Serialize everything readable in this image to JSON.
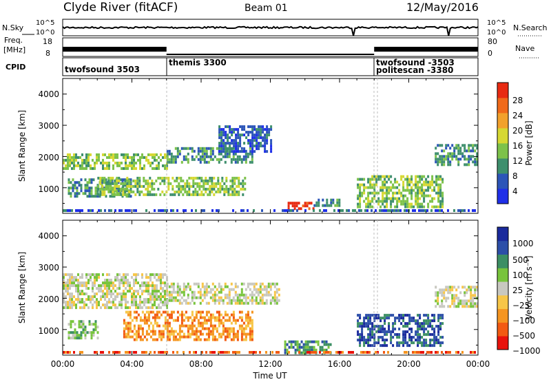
{
  "header": {
    "station": "Clyde River (fitACF)",
    "beam": "Beam 01",
    "date": "12/May/2016"
  },
  "top_panels": {
    "nsky_label": "N.Sky",
    "nsky_ticks": [
      "10^5",
      "10^0"
    ],
    "nsearch_label": "N.Search",
    "nsearch_ticks": [
      "10^5",
      "10^0"
    ],
    "freq_label_1": "Freq.",
    "freq_label_2": "[MHz]",
    "freq_ticks": [
      "18",
      "8"
    ],
    "nave_label": "Nave",
    "nave_ticks": [
      "80",
      "0"
    ],
    "cpid_label": "CPID"
  },
  "cpid_segments": [
    {
      "label": "twofsound 3503",
      "start_hour": 0
    },
    {
      "label": "themis 3300",
      "start_hour": 6
    },
    {
      "label": "twofsound -3503",
      "start_hour": 18
    },
    {
      "label": "politescan -3380",
      "start_hour": 18
    }
  ],
  "colors": {
    "power": [
      "#1f2fe8",
      "#2c55b8",
      "#3e8f6d",
      "#7dc24a",
      "#d6d832",
      "#f2a12c",
      "#f06a1a",
      "#e82a12"
    ],
    "velocity": [
      "#e8120c",
      "#f25a12",
      "#f59520",
      "#f7c648",
      "#c8c8c0",
      "#78c43c",
      "#3c8f64",
      "#2c4fa8",
      "#1a2a9c"
    ]
  },
  "chart_data": [
    {
      "type": "heatmap",
      "name": "power",
      "ylabel": "Slant Range [km]",
      "xlabel": "",
      "xlim": [
        "00:00",
        "00:00"
      ],
      "ylim": [
        180,
        4500
      ],
      "y_ticks": [
        "1000",
        "2000",
        "3000",
        "4000"
      ],
      "colorbar_label": "Power [dB]",
      "colorbar_ticks": [
        "4",
        "8",
        "12",
        "16",
        "20",
        "24",
        "28"
      ],
      "regions": [
        {
          "t0": 0.0,
          "t1": 6.0,
          "r0": 1650,
          "r1": 2100,
          "level": 3
        },
        {
          "t0": 0.3,
          "t1": 4.0,
          "r0": 700,
          "r1": 1300,
          "level": 2
        },
        {
          "t0": 2.0,
          "t1": 10.5,
          "r0": 750,
          "r1": 1350,
          "level": 3
        },
        {
          "t0": 6.0,
          "t1": 11.0,
          "r0": 1800,
          "r1": 2300,
          "level": 2
        },
        {
          "t0": 9.0,
          "t1": 12.0,
          "r0": 2200,
          "r1": 3000,
          "level": 1
        },
        {
          "t0": 13.0,
          "t1": 14.5,
          "r0": 350,
          "r1": 550,
          "level": 7
        },
        {
          "t0": 14.5,
          "t1": 16.0,
          "r0": 400,
          "r1": 650,
          "level": 2
        },
        {
          "t0": 17.0,
          "t1": 22.0,
          "r0": 400,
          "r1": 1400,
          "level": 3
        },
        {
          "t0": 21.5,
          "t1": 24.0,
          "r0": 1700,
          "r1": 2400,
          "level": 2
        }
      ]
    },
    {
      "type": "heatmap",
      "name": "velocity",
      "ylabel": "Slant Range [km]",
      "xlabel": "Time UT",
      "x_ticks": [
        "00:00",
        "04:00",
        "08:00",
        "12:00",
        "16:00",
        "20:00",
        "00:00"
      ],
      "ylim": [
        180,
        4500
      ],
      "y_ticks": [
        "1000",
        "2000",
        "3000",
        "4000"
      ],
      "colorbar_label": "Velocity [m s⁻¹]",
      "colorbar_ticks": [
        "1000",
        "500",
        "100",
        "25",
        "−25",
        "−100",
        "−500",
        "−1000"
      ],
      "regions": [
        {
          "t0": 0.0,
          "t1": 6.0,
          "r0": 1700,
          "r1": 2800,
          "level": 4
        },
        {
          "t0": 3.5,
          "t1": 11.0,
          "r0": 700,
          "r1": 1600,
          "level": 2
        },
        {
          "t0": 6.0,
          "t1": 12.5,
          "r0": 1800,
          "r1": 2500,
          "level": 4
        },
        {
          "t0": 12.8,
          "t1": 15.5,
          "r0": 250,
          "r1": 650,
          "level": 6
        },
        {
          "t0": 17.0,
          "t1": 22.0,
          "r0": 500,
          "r1": 1500,
          "level": 7
        },
        {
          "t0": 21.5,
          "t1": 24.0,
          "r0": 1700,
          "r1": 2400,
          "level": 4
        },
        {
          "t0": 0.3,
          "t1": 2.0,
          "r0": 700,
          "r1": 1300,
          "level": 5
        }
      ]
    }
  ]
}
